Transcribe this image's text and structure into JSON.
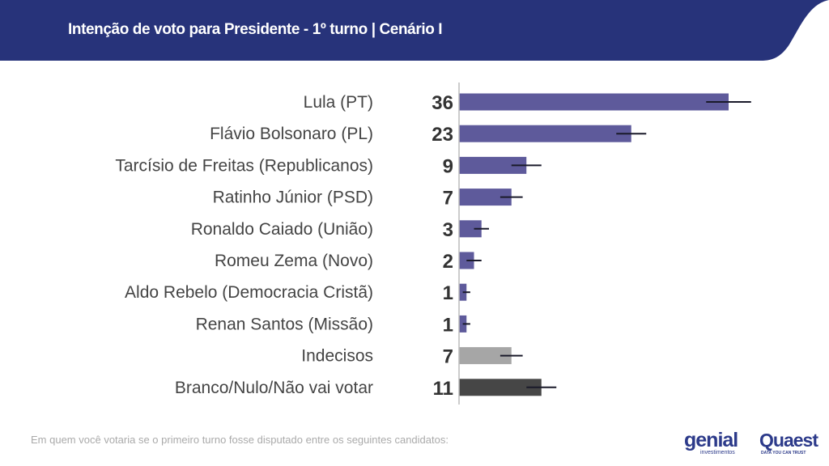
{
  "header": {
    "title": "Intenção de voto para Presidente - 1º turno | Cenário I"
  },
  "chart_data": {
    "type": "bar",
    "orientation": "horizontal",
    "categories": [
      "Lula (PT)",
      "Flávio Bolsonaro (PL)",
      "Tarcísio de Freitas (Republicanos)",
      "Ratinho Júnior (PSD)",
      "Ronaldo Caiado (União)",
      "Romeu Zema (Novo)",
      "Aldo Rebelo (Democracia Cristã)",
      "Renan Santos (Missão)",
      "Indecisos",
      "Branco/Nulo/Não vai votar"
    ],
    "values": [
      36,
      23,
      9,
      7,
      3,
      2,
      1,
      1,
      7,
      11
    ],
    "error_margin": [
      3,
      2,
      2,
      1.5,
      1,
      1,
      0.5,
      0.5,
      1.5,
      2
    ],
    "colors": [
      "#5e5a9b",
      "#5e5a9b",
      "#5e5a9b",
      "#5e5a9b",
      "#5e5a9b",
      "#5e5a9b",
      "#5e5a9b",
      "#5e5a9b",
      "#a6a6a6",
      "#464646"
    ],
    "grid": false
  },
  "footnote": "Em quem você votaria se o primeiro turno fosse disputado entre os seguintes candidatos:",
  "logos": {
    "genial": "genial",
    "genial_sub": "investimentos",
    "quaest": "Quaest",
    "quaest_sub": "DATA YOU CAN TRUST"
  },
  "colors": {
    "header": "#27337a"
  }
}
